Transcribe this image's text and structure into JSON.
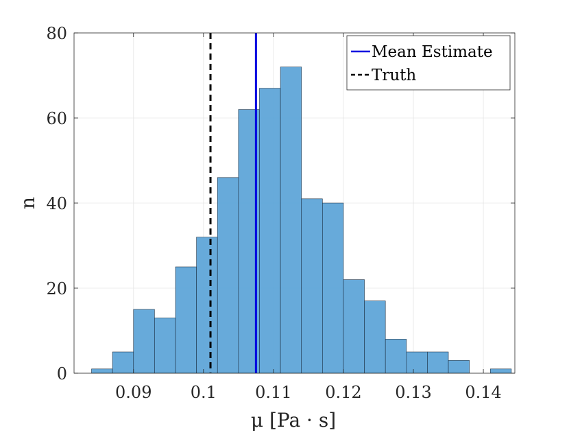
{
  "chart_data": {
    "type": "bar",
    "subtype": "histogram",
    "xlabel": "μ [Pa · s]",
    "ylabel": "n",
    "xlim": [
      0.0815,
      0.1445
    ],
    "ylim": [
      0,
      80
    ],
    "xticks": [
      0.09,
      0.1,
      0.11,
      0.12,
      0.13,
      0.14
    ],
    "xtick_labels": [
      "0.09",
      "0.1",
      "0.11",
      "0.12",
      "0.13",
      "0.14"
    ],
    "yticks": [
      0,
      20,
      40,
      60,
      80
    ],
    "ytick_labels": [
      "0",
      "20",
      "40",
      "60",
      "80"
    ],
    "grid": true,
    "bin_edges": [
      0.084,
      0.087,
      0.09,
      0.093,
      0.096,
      0.099,
      0.102,
      0.105,
      0.108,
      0.111,
      0.114,
      0.117,
      0.12,
      0.123,
      0.126,
      0.129,
      0.132,
      0.135,
      0.138,
      0.141,
      0.144
    ],
    "counts": [
      1,
      5,
      15,
      13,
      25,
      32,
      46,
      62,
      67,
      72,
      41,
      40,
      22,
      17,
      8,
      5,
      5,
      3,
      0,
      1
    ],
    "bar_color": "#5FA5D8",
    "lines": [
      {
        "name": "Mean Estimate",
        "x": 0.1075,
        "color": "#0000E0",
        "style": "solid"
      },
      {
        "name": "Truth",
        "x": 0.101,
        "color": "#000000",
        "style": "dashed"
      }
    ],
    "legend": {
      "position": "top-right",
      "entries": [
        "Mean Estimate",
        "Truth"
      ]
    }
  }
}
